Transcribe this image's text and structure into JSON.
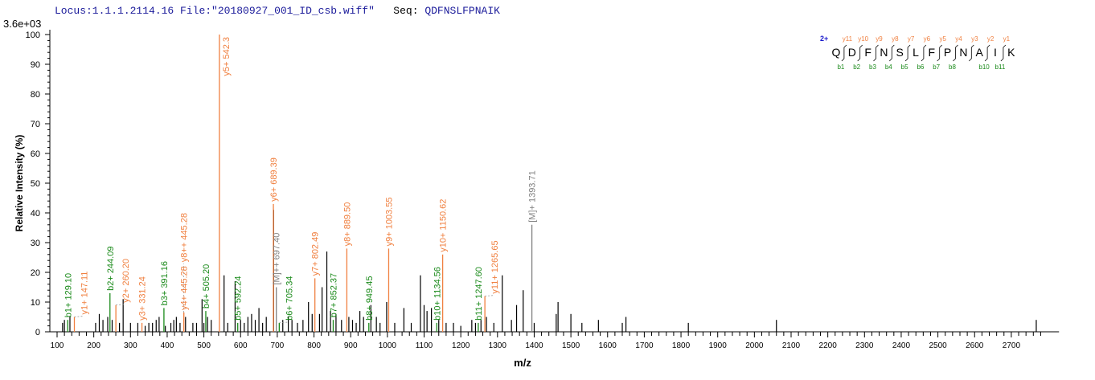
{
  "header": {
    "locus": "Locus:1.1.1.2114.16",
    "file": "File:\"20180927_001_ID_csb.wiff\"",
    "seq_label": "Seq:",
    "seq": "QDFNSLFPNAIK"
  },
  "chart_data": {
    "type": "bar",
    "title": "",
    "xlabel": "m/z",
    "ylabel": "Relative   Intensity (%)",
    "y_scale_label": "3.6e+03",
    "xlim": [
      74,
      2830
    ],
    "ylim": [
      0,
      100
    ],
    "x_ticks": [
      100,
      200,
      300,
      400,
      500,
      600,
      700,
      800,
      900,
      1000,
      1100,
      1200,
      1300,
      1400,
      1500,
      1600,
      1700,
      1800,
      1900,
      2000,
      2100,
      2200,
      2300,
      2400,
      2500,
      2600,
      2700
    ],
    "y_ticks": [
      0,
      10,
      20,
      30,
      40,
      50,
      60,
      70,
      80,
      90,
      100
    ],
    "colors": {
      "y_ion": "#f08040",
      "b_ion": "#1a8a1a",
      "precursor": "#808080",
      "unassigned": "#000000",
      "charge": "#1a1acc"
    },
    "annotated_peaks": [
      {
        "label": "b1+ 129.10",
        "mz": 129.1,
        "intensity": 4,
        "type": "b"
      },
      {
        "label": "y1+ 147.11",
        "mz": 147.11,
        "intensity": 5,
        "type": "y"
      },
      {
        "label": "b2+ 244.09",
        "mz": 244.09,
        "intensity": 13,
        "type": "b"
      },
      {
        "label": "y2+ 260.20",
        "mz": 260.2,
        "intensity": 9,
        "type": "y"
      },
      {
        "label": "y3+ 331.24",
        "mz": 331.24,
        "intensity": 3,
        "type": "y"
      },
      {
        "label": "b3+ 391.16",
        "mz": 391.16,
        "intensity": 8,
        "type": "b"
      },
      {
        "label": "y8++ 445.28",
        "mz": 445.28,
        "intensity": 6.5,
        "type": "y",
        "offset": 25
      },
      {
        "label": "y4+ 445.28",
        "mz": 445.28,
        "intensity": 6.5,
        "type": "y"
      },
      {
        "label": "b4+ 505.20",
        "mz": 505.2,
        "intensity": 7,
        "type": "b"
      },
      {
        "label": "y5+ 542.3",
        "mz": 542.3,
        "intensity": 100,
        "type": "y"
      },
      {
        "label": "b5+ 592.24",
        "mz": 592.24,
        "intensity": 3,
        "type": "b"
      },
      {
        "label": "y6+ 689.39",
        "mz": 689.39,
        "intensity": 43,
        "type": "y"
      },
      {
        "label": "[M]++ 697.40",
        "mz": 697.4,
        "intensity": 15,
        "type": "p"
      },
      {
        "label": "b6+ 705.34",
        "mz": 705.34,
        "intensity": 3,
        "type": "b"
      },
      {
        "label": "y7+ 802.49",
        "mz": 802.49,
        "intensity": 18,
        "type": "y"
      },
      {
        "label": "b7+ 852.37",
        "mz": 852.37,
        "intensity": 4,
        "type": "b"
      },
      {
        "label": "y8+ 889.50",
        "mz": 889.5,
        "intensity": 28,
        "type": "y"
      },
      {
        "label": "b8+ 949.45",
        "mz": 949.45,
        "intensity": 3,
        "type": "b"
      },
      {
        "label": "y9+ 1003.55",
        "mz": 1003.55,
        "intensity": 28,
        "type": "y"
      },
      {
        "label": "b10+ 1134.56",
        "mz": 1134.56,
        "intensity": 3,
        "type": "b"
      },
      {
        "label": "y10+ 1150.62",
        "mz": 1150.62,
        "intensity": 26,
        "type": "y"
      },
      {
        "label": "b11+ 1247.60",
        "mz": 1247.6,
        "intensity": 3,
        "type": "b"
      },
      {
        "label": "y11+ 1265.65",
        "mz": 1265.65,
        "intensity": 12,
        "type": "y"
      },
      {
        "label": "[M]+ 1393.71",
        "mz": 1393.71,
        "intensity": 36,
        "type": "p"
      }
    ],
    "unassigned_peaks": [
      [
        115,
        3
      ],
      [
        120,
        4
      ],
      [
        135,
        5
      ],
      [
        205,
        3
      ],
      [
        215,
        6
      ],
      [
        225,
        4
      ],
      [
        238,
        5
      ],
      [
        250,
        4
      ],
      [
        270,
        3
      ],
      [
        280,
        11
      ],
      [
        300,
        3
      ],
      [
        320,
        3
      ],
      [
        340,
        2
      ],
      [
        350,
        3
      ],
      [
        360,
        3
      ],
      [
        370,
        4
      ],
      [
        378,
        5
      ],
      [
        395,
        2
      ],
      [
        410,
        3
      ],
      [
        418,
        4
      ],
      [
        425,
        5
      ],
      [
        435,
        3
      ],
      [
        450,
        5
      ],
      [
        470,
        3
      ],
      [
        480,
        3
      ],
      [
        495,
        11
      ],
      [
        500,
        3
      ],
      [
        510,
        5
      ],
      [
        520,
        4
      ],
      [
        555,
        19
      ],
      [
        565,
        3
      ],
      [
        585,
        17
      ],
      [
        600,
        4
      ],
      [
        610,
        3
      ],
      [
        620,
        5
      ],
      [
        630,
        6
      ],
      [
        640,
        4
      ],
      [
        650,
        8
      ],
      [
        660,
        3
      ],
      [
        670,
        5
      ],
      [
        690,
        41
      ],
      [
        715,
        4
      ],
      [
        730,
        5
      ],
      [
        740,
        4
      ],
      [
        755,
        3
      ],
      [
        770,
        4
      ],
      [
        785,
        10
      ],
      [
        795,
        6
      ],
      [
        815,
        6
      ],
      [
        822,
        15
      ],
      [
        835,
        27
      ],
      [
        845,
        7
      ],
      [
        860,
        6
      ],
      [
        875,
        4
      ],
      [
        895,
        5
      ],
      [
        905,
        4
      ],
      [
        915,
        3
      ],
      [
        925,
        7
      ],
      [
        935,
        5
      ],
      [
        955,
        9
      ],
      [
        970,
        5
      ],
      [
        980,
        3
      ],
      [
        998,
        10
      ],
      [
        1020,
        3
      ],
      [
        1045,
        8
      ],
      [
        1065,
        3
      ],
      [
        1090,
        19
      ],
      [
        1100,
        9
      ],
      [
        1108,
        7
      ],
      [
        1120,
        8
      ],
      [
        1140,
        4
      ],
      [
        1160,
        3
      ],
      [
        1180,
        3
      ],
      [
        1200,
        2
      ],
      [
        1230,
        4
      ],
      [
        1240,
        3
      ],
      [
        1255,
        4
      ],
      [
        1270,
        5
      ],
      [
        1290,
        3
      ],
      [
        1313,
        19
      ],
      [
        1338,
        4
      ],
      [
        1352,
        9
      ],
      [
        1370,
        14
      ],
      [
        1400,
        3
      ],
      [
        1460,
        6
      ],
      [
        1465,
        10
      ],
      [
        1500,
        6
      ],
      [
        1530,
        3
      ],
      [
        1575,
        4
      ],
      [
        1640,
        3
      ],
      [
        1650,
        5
      ],
      [
        1820,
        3
      ],
      [
        2060,
        4
      ],
      [
        2768,
        4
      ]
    ]
  },
  "sequence_legend": {
    "charge": "2+",
    "residues": [
      "Q",
      "D",
      "F",
      "N",
      "S",
      "L",
      "F",
      "P",
      "N",
      "A",
      "I",
      "K"
    ],
    "y_ions": [
      "y11",
      "y10",
      "y9",
      "y8",
      "y7",
      "y6",
      "y5",
      "y4",
      "y3",
      "y2",
      "y1"
    ],
    "b_ions": [
      "b1",
      "b2",
      "b3",
      "b4",
      "b5",
      "b6",
      "b7",
      "b8",
      "",
      "b10",
      "b11"
    ]
  }
}
